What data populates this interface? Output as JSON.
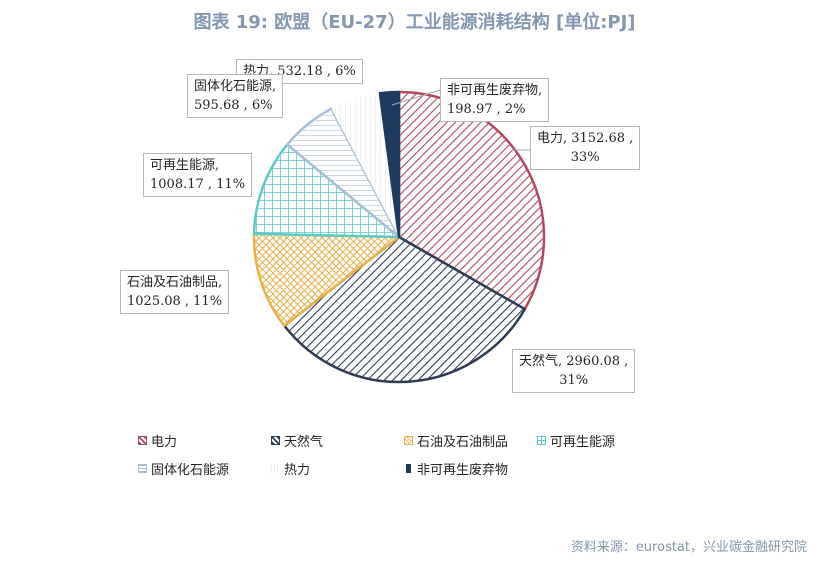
{
  "chart_data": {
    "type": "pie",
    "title": "图表 19: 欧盟（EU-27）工业能源消耗结构 [单位:PJ]",
    "slices": [
      {
        "name": "电力",
        "value": 3152.68,
        "percent": "33%",
        "color": "#b5485c",
        "pattern": "diag-right"
      },
      {
        "name": "天然气",
        "value": 2960.08,
        "percent": "31%",
        "color": "#2f3d52",
        "pattern": "diag-right"
      },
      {
        "name": "石油及石油制品",
        "value": 1025.08,
        "percent": "11%",
        "color": "#e8b04a",
        "pattern": "cross-diag"
      },
      {
        "name": "可再生能源",
        "value": 1008.17,
        "percent": "11%",
        "color": "#5cc8c8",
        "pattern": "grid"
      },
      {
        "name": "固体化石能源",
        "value": 595.68,
        "percent": "6%",
        "color": "#a9bfd6",
        "pattern": "horizontal"
      },
      {
        "name": "热力",
        "value": 532.18,
        "percent": "6%",
        "color": "#e6e6e6",
        "pattern": "vertical"
      },
      {
        "name": "非可再生废弃物",
        "value": 198.97,
        "percent": "2%",
        "color": "#1f3a5f",
        "pattern": "solid"
      }
    ],
    "labels": {
      "electricity": {
        "line1": "电力, 3152.68 ,",
        "line2": "33%"
      },
      "gas": {
        "line1": "天然气, 2960.08 ,",
        "line2": "31%"
      },
      "oil": {
        "line1": "石油及石油制品,",
        "line2": "1025.08 , 11%"
      },
      "renewable": {
        "line1": "可再生能源,",
        "line2": "1008.17 , 11%"
      },
      "solid": {
        "line1": "固体化石能源,",
        "line2": "595.68 , 6%"
      },
      "heat": {
        "line1": "热力, 532.18 , 6%"
      },
      "waste": {
        "line1": "非可再生废弃物,",
        "line2": "198.97 , 2%"
      }
    },
    "legend": [
      "电力",
      "天然气",
      "石油及石油制品",
      "可再生能源",
      "固体化石能源",
      "热力",
      "非可再生废弃物"
    ],
    "legend_placement": "bottom"
  },
  "source": "资料来源：eurostat，兴业碳金融研究院"
}
